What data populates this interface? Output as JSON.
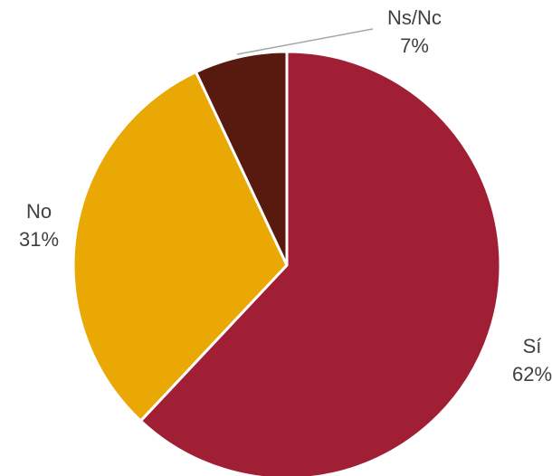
{
  "chart_data": {
    "type": "pie",
    "slices": [
      {
        "name": "Sí",
        "value": 62,
        "label": "62%",
        "color": "#a01f35"
      },
      {
        "name": "No",
        "value": 31,
        "label": "31%",
        "color": "#eaa805"
      },
      {
        "name": "Ns/Nc",
        "value": 7,
        "label": "7%",
        "color": "#581a0e"
      }
    ],
    "start": "12 o'clock",
    "direction": "clockwise",
    "legend": "none"
  }
}
